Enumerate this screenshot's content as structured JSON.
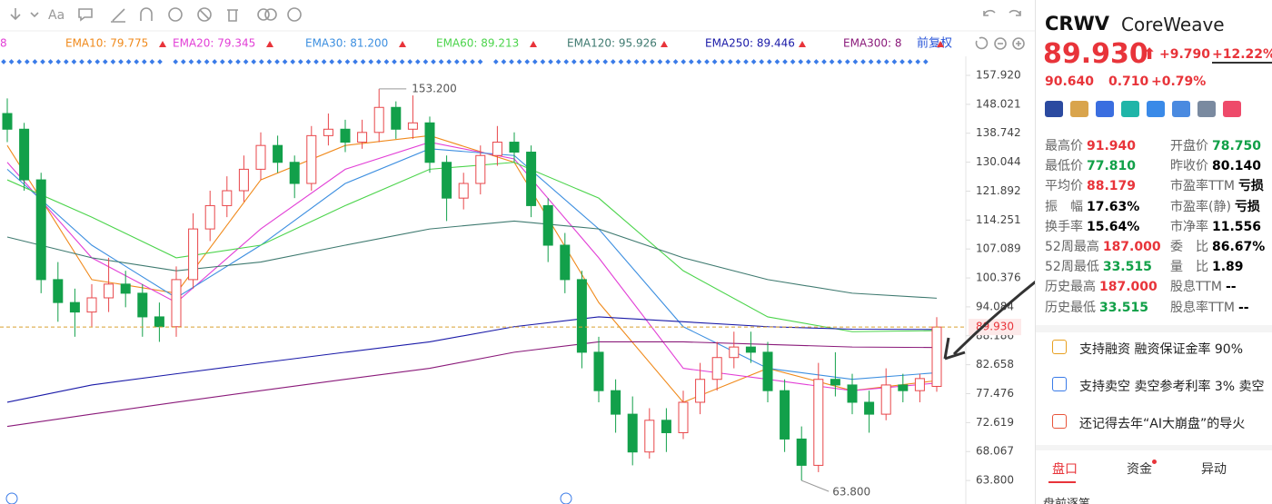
{
  "chart_data": {
    "type": "candlestick",
    "log_scale": true,
    "ylim": [
      60.53,
      163.8
    ],
    "yticks": [
      {
        "value": 157.92,
        "label": "157.920"
      },
      148.021,
      138.742,
      130.044,
      121.892,
      114.251,
      107.089,
      100.376,
      94.084,
      88.186,
      82.658,
      77.476,
      72.619,
      68.067,
      {
        "value": 63.8,
        "label": "63.800"
      }
    ],
    "up_color": "#e8464a",
    "down_color": "#12a04a",
    "ohlc": [
      [
        145,
        150,
        136,
        140
      ],
      [
        140,
        142,
        122,
        125
      ],
      [
        125,
        127,
        97,
        100
      ],
      [
        100,
        104,
        91,
        95
      ],
      [
        95,
        98,
        88,
        93
      ],
      [
        93,
        99,
        90,
        96
      ],
      [
        96,
        105,
        93,
        99
      ],
      [
        99,
        102,
        94,
        97
      ],
      [
        97,
        99,
        88,
        92
      ],
      [
        92,
        95,
        87,
        90
      ],
      [
        90,
        103,
        88,
        100
      ],
      [
        100,
        116,
        98,
        112
      ],
      [
        112,
        122,
        109,
        118
      ],
      [
        118,
        126,
        115,
        122
      ],
      [
        122,
        132,
        119,
        128
      ],
      [
        128,
        139,
        125,
        135
      ],
      [
        135,
        138,
        127,
        130
      ],
      [
        130,
        132,
        120,
        124
      ],
      [
        124,
        141,
        122,
        138
      ],
      [
        138,
        145,
        135,
        140
      ],
      [
        140,
        143,
        133,
        136
      ],
      [
        136,
        143,
        134,
        139
      ],
      [
        139,
        153.2,
        136,
        147
      ],
      [
        147,
        149,
        137,
        140
      ],
      [
        140,
        151,
        137,
        142
      ],
      [
        142,
        144,
        127,
        130
      ],
      [
        130,
        132,
        114,
        120
      ],
      [
        120,
        127,
        117,
        124
      ],
      [
        124,
        135,
        121,
        132
      ],
      [
        132,
        141,
        129,
        136
      ],
      [
        136,
        139,
        130,
        133
      ],
      [
        133,
        135,
        115,
        118
      ],
      [
        118,
        120,
        104,
        108
      ],
      [
        108,
        111,
        97,
        100
      ],
      [
        100,
        102,
        82,
        85
      ],
      [
        85,
        88,
        76,
        78
      ],
      [
        78,
        80,
        71,
        74
      ],
      [
        74,
        77,
        66,
        68
      ],
      [
        68,
        75,
        67,
        73
      ],
      [
        73,
        75,
        68,
        71
      ],
      [
        71,
        78,
        70,
        76
      ],
      [
        76,
        83,
        74,
        80
      ],
      [
        80,
        87,
        78,
        84
      ],
      [
        84,
        89,
        82,
        86
      ],
      [
        86,
        89,
        83,
        85
      ],
      [
        85,
        87,
        76,
        78
      ],
      [
        78,
        80,
        68,
        70
      ],
      [
        70,
        72,
        63.8,
        66
      ],
      [
        66,
        83,
        65,
        80
      ],
      [
        80,
        85,
        77,
        79
      ],
      [
        79,
        81,
        74,
        76
      ],
      [
        76,
        78,
        71,
        74
      ],
      [
        74,
        82,
        73,
        79
      ],
      [
        79,
        81,
        76,
        78
      ],
      [
        78,
        81,
        76,
        80.14
      ],
      [
        78.75,
        91.94,
        77.81,
        89.93
      ]
    ],
    "series": [
      {
        "legend": "EMA10: 79.775",
        "color": "#f08a1c",
        "values": [
          135,
          100,
          97,
          125,
          135,
          138,
          130,
          95,
          76,
          82,
          78,
          79.775
        ]
      },
      {
        "legend": "EMA20: 79.345",
        "color": "#e23fd6",
        "values": [
          130,
          105,
          95,
          112,
          128,
          136,
          131,
          105,
          82,
          80,
          78,
          79.345
        ]
      },
      {
        "legend": "EMA30: 81.200",
        "color": "#3d8fe0",
        "values": [
          128,
          108,
          96,
          108,
          124,
          134,
          132,
          112,
          90,
          82,
          80,
          81.2
        ]
      },
      {
        "legend": "EMA60: 89.213",
        "color": "#4cd44c",
        "values": [
          125,
          115,
          105,
          108,
          118,
          128,
          130,
          120,
          102,
          92,
          89,
          89.213
        ]
      },
      {
        "legend": "EMA120: 95.926",
        "color": "#3f7a70",
        "values": [
          110,
          105,
          102,
          104,
          108,
          112,
          114,
          112,
          105,
          100,
          97,
          95.926
        ]
      },
      {
        "legend": "EMA250: 89.446",
        "color": "#1a1aa8",
        "values": [
          76,
          79,
          81,
          83,
          85,
          87,
          90,
          92,
          91,
          90,
          89.5,
          89.446
        ]
      },
      {
        "legend": "EMA300: 8",
        "color": "#8a1a7a",
        "values": [
          72,
          74,
          76,
          78,
          80,
          82,
          85,
          87,
          87,
          86.5,
          86,
          85.9
        ]
      }
    ],
    "last_price": {
      "value": 89.93,
      "label": "89.930"
    },
    "high_label": {
      "value": 153.2,
      "label": "153.200"
    },
    "low_label": {
      "value": 63.8,
      "label": "63.800"
    },
    "adjust": "前复权",
    "legend_first": "8"
  },
  "side": {
    "ticker": "CRWV",
    "name": "CoreWeave",
    "price": "89.930",
    "change": "+9.790",
    "pct": "+12.22%",
    "after_price": "90.640",
    "after_change": "0.710",
    "after_pct": "+0.79%",
    "left": [
      [
        "最高价",
        "91.940",
        "red"
      ],
      [
        "最低价",
        "77.810",
        "green"
      ],
      [
        "平均价",
        "88.179",
        "red"
      ],
      [
        "振　幅",
        "17.63%",
        ""
      ],
      [
        "换手率",
        "15.64%",
        ""
      ],
      [
        "52周最高",
        "187.000",
        "red"
      ],
      [
        "52周最低",
        "33.515",
        "green"
      ],
      [
        "历史最高",
        "187.000",
        "red"
      ],
      [
        "历史最低",
        "33.515",
        "green"
      ]
    ],
    "right": [
      [
        "开盘价",
        "78.750",
        "green"
      ],
      [
        "昨收价",
        "80.140",
        ""
      ],
      [
        "市盈率TTM",
        "亏损",
        ""
      ],
      [
        "市盈率(静)",
        "亏损",
        ""
      ],
      [
        "市净率",
        "11.556",
        ""
      ],
      [
        "委　比",
        "86.67%",
        ""
      ],
      [
        "量　比",
        "1.89",
        ""
      ],
      [
        "股息TTM",
        "--",
        ""
      ],
      [
        "股息率TTM",
        "--",
        ""
      ]
    ],
    "notices": [
      "支持融资 融资保证金率 90%",
      "支持卖空 卖空参考利率 3% 卖空",
      "还记得去年“AI大崩盘”的导火"
    ],
    "tabs": [
      "盘口",
      "资金",
      "异动"
    ],
    "footer": "盘前逐笔"
  }
}
